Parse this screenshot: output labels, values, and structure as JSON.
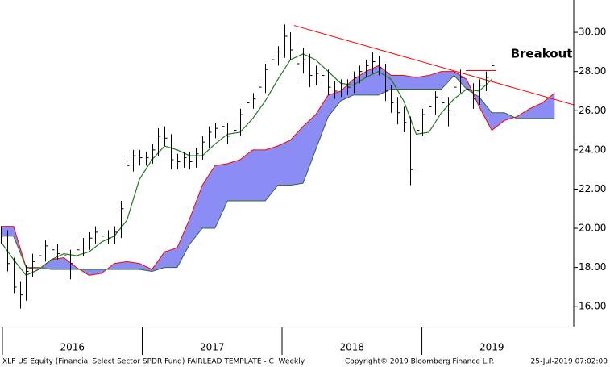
{
  "chart_data": {
    "type": "ohlc",
    "color": "#000000",
    "x": [
      2015.99,
      2016.035,
      2016.08,
      2016.125,
      2016.17,
      2016.215,
      2016.26,
      2016.305,
      2016.35,
      2016.395,
      2016.44,
      2016.485,
      2016.53,
      2016.575,
      2016.62,
      2016.665,
      2016.71,
      2016.755,
      2016.8,
      2016.845,
      2016.89,
      2016.935,
      2016.98,
      2017.025,
      2017.07,
      2017.115,
      2017.16,
      2017.205,
      2017.25,
      2017.295,
      2017.34,
      2017.385,
      2017.43,
      2017.475,
      2017.52,
      2017.565,
      2017.61,
      2017.655,
      2017.7,
      2017.745,
      2017.79,
      2017.835,
      2017.88,
      2017.925,
      2017.97,
      2018.015,
      2018.06,
      2018.105,
      2018.15,
      2018.195,
      2018.24,
      2018.285,
      2018.33,
      2018.375,
      2018.42,
      2018.465,
      2018.51,
      2018.555,
      2018.6,
      2018.645,
      2018.69,
      2018.735,
      2018.78,
      2018.825,
      2018.87,
      2018.915,
      2018.96,
      2019.005,
      2019.05,
      2019.095,
      2019.14,
      2019.185,
      2019.23,
      2019.275,
      2019.32,
      2019.365,
      2019.41,
      2019.455,
      2019.5
    ],
    "high": [
      20.1,
      19.9,
      18.5,
      17.3,
      18.1,
      18.7,
      19.0,
      19.4,
      19.4,
      19.2,
      19.0,
      18.9,
      19.2,
      19.5,
      19.8,
      20.1,
      20.0,
      19.9,
      20.1,
      21.4,
      23.5,
      24.0,
      24.0,
      23.9,
      24.3,
      25.1,
      25.2,
      24.8,
      23.8,
      23.9,
      23.9,
      24.1,
      24.7,
      25.2,
      25.4,
      25.5,
      25.4,
      25.3,
      26.1,
      26.7,
      26.9,
      27.5,
      28.4,
      28.9,
      29.3,
      30.4,
      30.0,
      29.4,
      29.2,
      28.9,
      28.3,
      28.2,
      28.1,
      27.5,
      27.6,
      27.6,
      28.0,
      28.3,
      28.6,
      29.0,
      28.8,
      28.4,
      27.3,
      26.7,
      26.2,
      25.7,
      25.3,
      26.1,
      26.5,
      27.0,
      27.0,
      26.7,
      27.5,
      28.1,
      28.1,
      27.4,
      27.6,
      28.0,
      28.6
    ],
    "low": [
      19.2,
      17.8,
      16.7,
      15.9,
      16.3,
      17.5,
      18.0,
      18.3,
      18.6,
      18.4,
      18.2,
      17.4,
      17.9,
      18.6,
      18.9,
      19.2,
      19.3,
      19.2,
      19.2,
      19.5,
      20.6,
      22.9,
      23.2,
      23.2,
      23.3,
      23.7,
      24.2,
      23.0,
      23.0,
      23.1,
      23.0,
      23.1,
      23.5,
      24.1,
      24.6,
      24.8,
      24.3,
      24.4,
      24.7,
      25.5,
      26.1,
      26.3,
      26.9,
      27.7,
      28.3,
      28.7,
      28.6,
      27.5,
      27.9,
      27.2,
      27.3,
      27.4,
      26.8,
      26.6,
      26.7,
      26.8,
      26.9,
      27.4,
      27.7,
      27.9,
      27.8,
      26.5,
      25.9,
      25.3,
      24.9,
      22.2,
      22.8,
      24.7,
      25.4,
      25.8,
      26.0,
      25.2,
      25.8,
      26.9,
      26.8,
      26.1,
      26.3,
      27.0,
      27.6
    ],
    "close": [
      19.6,
      18.2,
      17.0,
      16.6,
      17.8,
      18.3,
      18.6,
      19.1,
      18.9,
      18.7,
      18.6,
      18.2,
      18.9,
      19.2,
      19.5,
      19.8,
      19.6,
      19.5,
      19.8,
      21.0,
      23.2,
      23.7,
      23.6,
      23.6,
      24.0,
      24.7,
      24.6,
      23.5,
      23.4,
      23.6,
      23.4,
      23.8,
      24.4,
      24.9,
      25.1,
      25.2,
      24.7,
      25.0,
      25.8,
      26.4,
      26.6,
      27.2,
      28.1,
      28.6,
      29.0,
      29.8,
      29.1,
      28.4,
      28.6,
      27.8,
      27.9,
      27.8,
      27.2,
      27.0,
      27.3,
      27.2,
      27.7,
      28.0,
      28.3,
      28.5,
      28.2,
      27.0,
      26.4,
      25.9,
      25.4,
      23.0,
      25.0,
      25.8,
      26.2,
      26.7,
      26.4,
      26.0,
      27.2,
      27.7,
      27.1,
      26.6,
      27.3,
      27.7,
      28.3
    ],
    "moving_average": {
      "color": "#1f7a1f",
      "x": [
        2015.99,
        2016.08,
        2016.17,
        2016.26,
        2016.35,
        2016.44,
        2016.53,
        2016.62,
        2016.71,
        2016.8,
        2016.89,
        2016.98,
        2017.07,
        2017.16,
        2017.25,
        2017.34,
        2017.43,
        2017.52,
        2017.61,
        2017.7,
        2017.79,
        2017.88,
        2017.97,
        2018.06,
        2018.15,
        2018.24,
        2018.33,
        2018.42,
        2018.51,
        2018.6,
        2018.69,
        2018.78,
        2018.87,
        2018.96,
        2019.05,
        2019.14,
        2019.23,
        2019.32,
        2019.41,
        2019.5
      ],
      "values": [
        19.3,
        18.4,
        17.6,
        17.9,
        18.4,
        18.7,
        18.6,
        18.8,
        19.3,
        19.6,
        20.4,
        22.5,
        23.5,
        24.2,
        24.0,
        23.7,
        23.7,
        24.3,
        24.8,
        24.9,
        25.6,
        26.5,
        27.6,
        28.6,
        28.9,
        28.6,
        28.0,
        27.4,
        27.3,
        27.7,
        28.0,
        27.6,
        26.5,
        24.8,
        24.9,
        25.9,
        26.6,
        27.1,
        27.0,
        27.6
      ]
    },
    "cloud": {
      "span_a_color": "#ff0000",
      "span_b_color": "#2e6b2e",
      "fill": "#8c8cf5",
      "x": [
        2015.99,
        2016.08,
        2016.17,
        2016.26,
        2016.35,
        2016.44,
        2016.53,
        2016.62,
        2016.71,
        2016.8,
        2016.89,
        2016.98,
        2017.07,
        2017.16,
        2017.25,
        2017.34,
        2017.43,
        2017.52,
        2017.61,
        2017.7,
        2017.79,
        2017.88,
        2017.97,
        2018.06,
        2018.15,
        2018.24,
        2018.33,
        2018.42,
        2018.51,
        2018.6,
        2018.69,
        2018.78,
        2018.87,
        2018.96,
        2019.05,
        2019.14,
        2019.23,
        2019.32,
        2019.41,
        2019.5,
        2019.59,
        2019.68,
        2019.77,
        2019.86,
        2019.95
      ],
      "span_a": [
        20.1,
        20.1,
        18.0,
        17.9,
        18.4,
        18.5,
        18.0,
        17.6,
        17.7,
        18.2,
        18.3,
        18.2,
        17.9,
        18.8,
        19.0,
        20.5,
        22.2,
        23.2,
        23.3,
        23.5,
        24.0,
        24.0,
        24.2,
        24.5,
        25.2,
        25.8,
        26.8,
        27.0,
        27.6,
        28.0,
        28.3,
        27.8,
        27.8,
        27.7,
        27.8,
        28.0,
        28.0,
        27.6,
        26.2,
        25.0,
        25.5,
        25.7,
        26.1,
        26.4,
        26.9
      ],
      "span_b": [
        19.6,
        19.6,
        18.0,
        18.0,
        17.9,
        17.9,
        17.9,
        17.9,
        17.9,
        17.9,
        17.9,
        17.9,
        17.8,
        18.0,
        18.0,
        19.2,
        20.0,
        20.0,
        21.4,
        21.4,
        21.4,
        21.4,
        22.2,
        22.2,
        22.3,
        24.0,
        25.7,
        26.5,
        26.8,
        26.8,
        26.8,
        27.1,
        27.1,
        27.1,
        27.1,
        27.1,
        27.8,
        27.1,
        26.7,
        25.9,
        25.9,
        25.6,
        25.6,
        25.6,
        25.6
      ]
    },
    "trendline": {
      "color": "#ff0000",
      "x": [
        2018.086,
        2020.086
      ],
      "y": [
        30.35,
        26.3
      ]
    },
    "resistance": {
      "color": "#ff0000",
      "x": [
        2019.314,
        2019.531
      ],
      "y": [
        28.05,
        28.05
      ]
    },
    "annotation": "Breakout",
    "xlim": [
      2015.983,
      2020.086
    ],
    "xticks": [
      2016,
      2017,
      2018,
      2019
    ],
    "ylim": [
      14.98,
      31.65
    ],
    "yticks": [
      {
        "value": 16,
        "label": "16.00"
      },
      {
        "value": 18,
        "label": "18.00"
      },
      {
        "value": 20,
        "label": "20.00"
      },
      {
        "value": 22,
        "label": "22.00"
      },
      {
        "value": 24,
        "label": "24.00"
      },
      {
        "value": 26,
        "label": "26.00"
      },
      {
        "value": 28,
        "label": "28.00"
      },
      {
        "value": 30,
        "label": "30.00"
      }
    ],
    "footer": {
      "left": "XLF US Equity (Financial Select Sector SPDR Fund) FAIRLEAD TEMPLATE - C  Weekly",
      "center": "Copyright© 2019 Bloomberg Finance L.P.",
      "right": "25-Jul-2019 07:02:00"
    }
  }
}
